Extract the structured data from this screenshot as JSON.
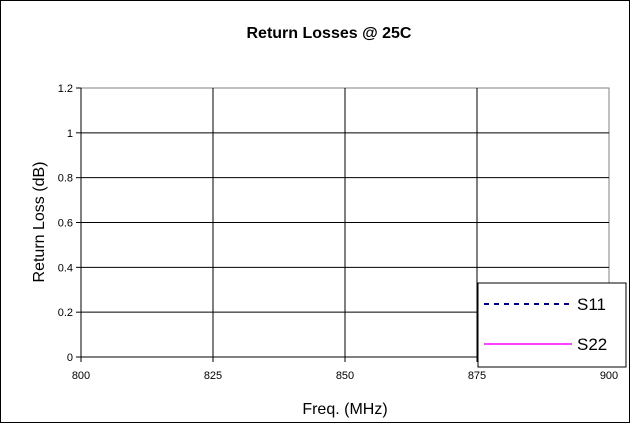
{
  "chart_data": {
    "type": "line",
    "title": "Return Losses @ 25C",
    "xlabel": "Freq. (MHz)",
    "ylabel": "Return Loss (dB)",
    "xlim": [
      800,
      900
    ],
    "ylim": [
      0,
      1.2
    ],
    "x_ticks": [
      "800",
      "825",
      "850",
      "875",
      "900"
    ],
    "y_ticks": [
      "0",
      "0.2",
      "0.4",
      "0.6",
      "0.8",
      "1",
      "1.2"
    ],
    "grid": true,
    "legend_position": "bottom-right",
    "series": [
      {
        "name": "S11",
        "color": "#000080",
        "line_style": "dashed",
        "points": []
      },
      {
        "name": "S22",
        "color": "#ff00ff",
        "line_style": "solid",
        "points": []
      }
    ]
  }
}
